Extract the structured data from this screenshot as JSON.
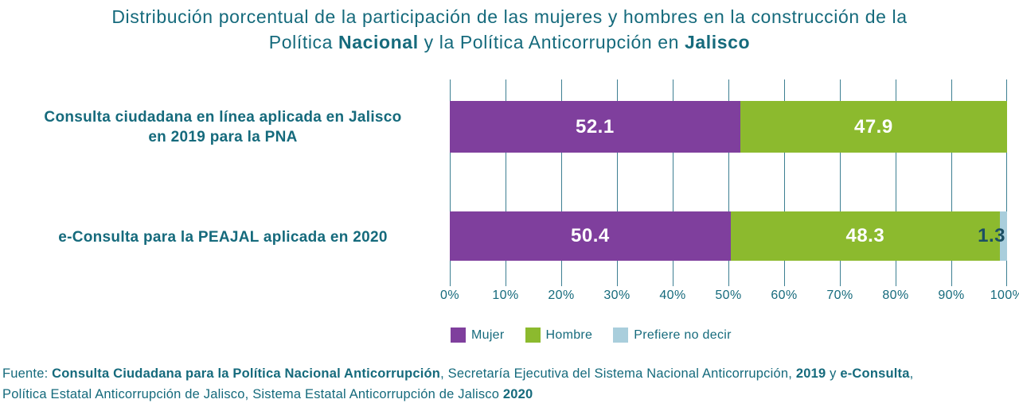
{
  "colors": {
    "teal_text": "#156A7C",
    "purple": "#7F3F9D",
    "green": "#8CBA2E",
    "light_blue": "#A9CEDC",
    "gridline": "#3D7F92",
    "value_label_white": "#FFFFFF",
    "value_label_dark": "#1C4F63"
  },
  "title": {
    "segments": [
      {
        "text": "Distribución porcentual de la participación de las mujeres y hombres en la construcción de la",
        "bold": false
      },
      {
        "br": true
      },
      {
        "text": "Política ",
        "bold": false
      },
      {
        "text": "Nacional",
        "bold": true
      },
      {
        "text": " y la Política Anticorrupción en ",
        "bold": false
      },
      {
        "text": "Jalisco",
        "bold": true
      }
    ]
  },
  "chart_data": {
    "type": "stacked_bar_horizontal",
    "categories": [
      "Consulta ciudadana en línea aplicada en Jalisco en 2019 para la PNA",
      "e-Consulta para la PEAJAL aplicada en 2020"
    ],
    "category_label_lines": [
      [
        "Consulta ciudadana en línea aplicada en Jalisco",
        "en 2019 para la PNA"
      ],
      [
        "e-Consulta para la PEAJAL aplicada en 2020"
      ]
    ],
    "series": [
      {
        "name": "Mujer",
        "color_key": "purple",
        "values": [
          52.1,
          50.4
        ],
        "label_overflow": false
      },
      {
        "name": "Hombre",
        "color_key": "green",
        "values": [
          47.9,
          48.3
        ],
        "label_overflow": false
      },
      {
        "name": "Prefiere no decir",
        "color_key": "light_blue",
        "values": [
          null,
          1.3
        ],
        "label_overflow": true
      }
    ],
    "x_ticks": [
      "0%",
      "10%",
      "20%",
      "30%",
      "40%",
      "50%",
      "60%",
      "70%",
      "80%",
      "90%",
      "100%"
    ],
    "xlim": [
      0,
      100
    ],
    "gridlines": "vertical",
    "legend_position": "bottom-left"
  },
  "legend": {
    "items": [
      {
        "label": "Mujer",
        "color_key": "purple"
      },
      {
        "label": "Hombre",
        "color_key": "green"
      },
      {
        "label": "Prefiere no decir",
        "color_key": "light_blue"
      }
    ]
  },
  "footer": {
    "segments": [
      {
        "text": "Fuente: ",
        "bold": false
      },
      {
        "text": "Consulta Ciudadana para la Política Nacional Anticorrupción",
        "bold": true
      },
      {
        "text": ", Secretaría Ejecutiva del Sistema Nacional Anticorrupción, ",
        "bold": false
      },
      {
        "text": "2019",
        "bold": true
      },
      {
        "text": " y ",
        "bold": false
      },
      {
        "text": "e-Consulta",
        "bold": true
      },
      {
        "text": ",",
        "bold": false
      },
      {
        "br": true
      },
      {
        "text": "Política Estatal Anticorrupción de Jalisco, Sistema Estatal Anticorrupción de Jalisco ",
        "bold": false
      },
      {
        "text": "2020",
        "bold": true
      }
    ]
  }
}
